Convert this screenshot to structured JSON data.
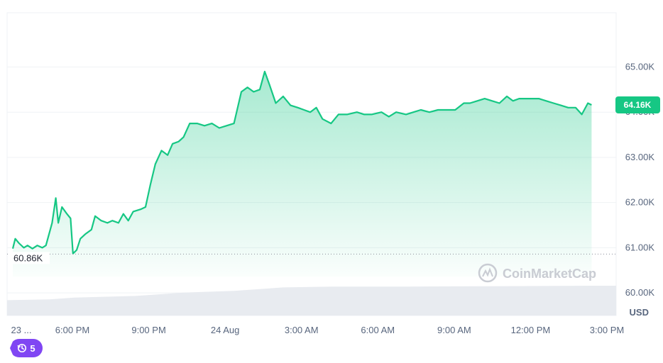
{
  "chart_data": {
    "type": "area",
    "currency": "USD",
    "open_price": 60860,
    "open_price_label": "60.86K",
    "current_price": 64160,
    "current_price_label": "64.16K",
    "ylim": [
      59500,
      66200
    ],
    "y_ticks": [
      {
        "value": 65000,
        "label": "65.00K"
      },
      {
        "value": 64000,
        "label": "64.00K"
      },
      {
        "value": 63000,
        "label": "63.00K"
      },
      {
        "value": 62000,
        "label": "62.00K"
      },
      {
        "value": 61000,
        "label": "61.00K"
      },
      {
        "value": 60000,
        "label": "60.00K"
      }
    ],
    "x_ticks": [
      "23 ...",
      "6:00 PM",
      "9:00 PM",
      "24 Aug",
      "3:00 AM",
      "6:00 AM",
      "9:00 AM",
      "12:00 PM",
      "3:00 PM"
    ],
    "x_range": [
      0,
      24
    ],
    "series": [
      {
        "points": [
          [
            0,
            60980
          ],
          [
            0.1,
            61200
          ],
          [
            0.25,
            61100
          ],
          [
            0.45,
            61000
          ],
          [
            0.6,
            61050
          ],
          [
            0.8,
            60980
          ],
          [
            1.0,
            61050
          ],
          [
            1.2,
            61000
          ],
          [
            1.35,
            61050
          ],
          [
            1.6,
            61550
          ],
          [
            1.75,
            62100
          ],
          [
            1.85,
            61550
          ],
          [
            2.0,
            61900
          ],
          [
            2.2,
            61750
          ],
          [
            2.35,
            61650
          ],
          [
            2.45,
            60870
          ],
          [
            2.6,
            60950
          ],
          [
            2.75,
            61200
          ],
          [
            2.95,
            61300
          ],
          [
            3.2,
            61400
          ],
          [
            3.35,
            61700
          ],
          [
            3.6,
            61600
          ],
          [
            3.85,
            61550
          ],
          [
            4.05,
            61600
          ],
          [
            4.3,
            61550
          ],
          [
            4.5,
            61750
          ],
          [
            4.7,
            61600
          ],
          [
            4.9,
            61800
          ],
          [
            5.2,
            61850
          ],
          [
            5.4,
            61900
          ],
          [
            5.6,
            62400
          ],
          [
            5.8,
            62850
          ],
          [
            6.05,
            63150
          ],
          [
            6.3,
            63050
          ],
          [
            6.5,
            63300
          ],
          [
            6.75,
            63350
          ],
          [
            6.95,
            63450
          ],
          [
            7.2,
            63750
          ],
          [
            7.5,
            63750
          ],
          [
            7.8,
            63700
          ],
          [
            8.1,
            63750
          ],
          [
            8.4,
            63650
          ],
          [
            8.7,
            63700
          ],
          [
            9.0,
            63750
          ],
          [
            9.3,
            64450
          ],
          [
            9.55,
            64550
          ],
          [
            9.8,
            64450
          ],
          [
            10.05,
            64500
          ],
          [
            10.25,
            64900
          ],
          [
            10.45,
            64600
          ],
          [
            10.7,
            64200
          ],
          [
            11.0,
            64350
          ],
          [
            11.3,
            64150
          ],
          [
            11.6,
            64100
          ],
          [
            11.85,
            64050
          ],
          [
            12.1,
            64000
          ],
          [
            12.35,
            64100
          ],
          [
            12.6,
            63850
          ],
          [
            12.95,
            63750
          ],
          [
            13.25,
            63950
          ],
          [
            13.6,
            63950
          ],
          [
            14.0,
            64000
          ],
          [
            14.3,
            63950
          ],
          [
            14.6,
            63950
          ],
          [
            15.0,
            64000
          ],
          [
            15.3,
            63900
          ],
          [
            15.6,
            64000
          ],
          [
            16.0,
            63950
          ],
          [
            16.3,
            64000
          ],
          [
            16.6,
            64050
          ],
          [
            16.95,
            64000
          ],
          [
            17.3,
            64050
          ],
          [
            17.65,
            64050
          ],
          [
            18.0,
            64050
          ],
          [
            18.35,
            64200
          ],
          [
            18.6,
            64200
          ],
          [
            18.9,
            64250
          ],
          [
            19.2,
            64300
          ],
          [
            19.5,
            64250
          ],
          [
            19.8,
            64200
          ],
          [
            20.1,
            64350
          ],
          [
            20.35,
            64250
          ],
          [
            20.6,
            64300
          ],
          [
            20.85,
            64300
          ],
          [
            21.1,
            64300
          ],
          [
            21.4,
            64300
          ],
          [
            21.7,
            64250
          ],
          [
            22.0,
            64200
          ],
          [
            22.3,
            64150
          ],
          [
            22.6,
            64100
          ],
          [
            22.9,
            64100
          ],
          [
            23.15,
            63950
          ],
          [
            23.4,
            64200
          ],
          [
            23.55,
            64160
          ]
        ]
      }
    ],
    "volume": {
      "points": [
        [
          0,
          0.36
        ],
        [
          1.5,
          0.38
        ],
        [
          2.5,
          0.42
        ],
        [
          5,
          0.46
        ],
        [
          7,
          0.54
        ],
        [
          9,
          0.58
        ],
        [
          11,
          0.66
        ],
        [
          13,
          0.68
        ],
        [
          16,
          0.68
        ],
        [
          20,
          0.69
        ],
        [
          23.55,
          0.7
        ]
      ]
    },
    "grid": "horizontal",
    "colors": {
      "line": "#16c784",
      "badge": "#16c784",
      "history_badge": "#8046f3"
    }
  },
  "watermark_text": "CoinMarketCap",
  "history_badge_count": "5"
}
